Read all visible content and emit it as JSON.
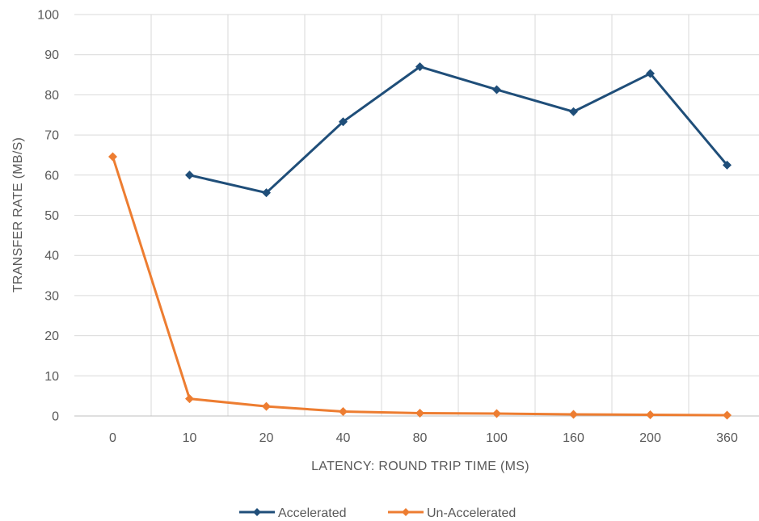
{
  "chart_data": {
    "type": "line",
    "categories": [
      "0",
      "10",
      "20",
      "40",
      "80",
      "100",
      "160",
      "200",
      "360"
    ],
    "series": [
      {
        "name": "Accelerated",
        "color": "#1f4e79",
        "values": [
          null,
          60,
          55.6,
          73.3,
          87,
          81.3,
          75.8,
          85.3,
          62.5
        ]
      },
      {
        "name": "Un-Accelerated",
        "color": "#ed7d31",
        "values": [
          64.6,
          4.3,
          2.4,
          1.1,
          0.7,
          0.6,
          0.4,
          0.3,
          0.2
        ]
      }
    ],
    "xlabel": "LATENCY: ROUND TRIP TIME (MS)",
    "ylabel": "TRANSFER RATE (MB/S)",
    "ylim": [
      0,
      100
    ],
    "yticks": [
      0,
      10,
      20,
      30,
      40,
      50,
      60,
      70,
      80,
      90,
      100
    ],
    "grid": true,
    "legend_position": "bottom"
  }
}
